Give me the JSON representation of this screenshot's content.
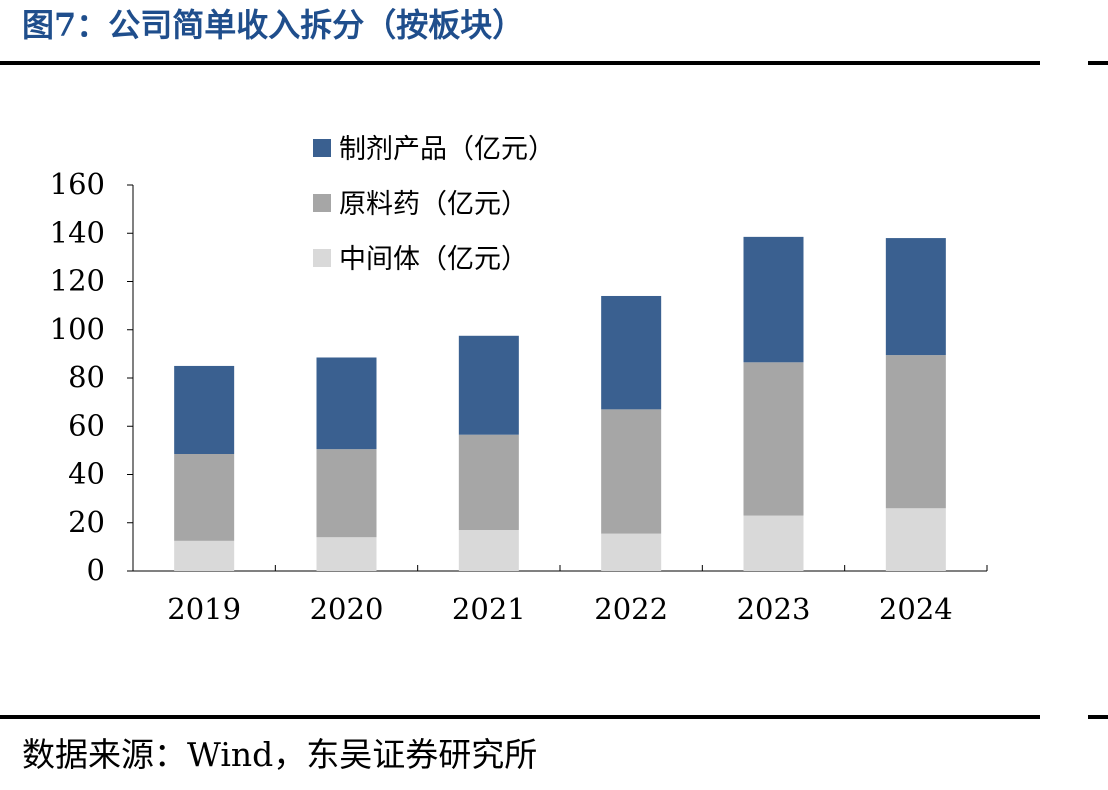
{
  "figure": {
    "title": "图7：公司简单收入拆分（按板块）",
    "source": "数据来源：Wind，东吴证券研究所"
  },
  "chart_data": {
    "type": "bar",
    "stacked": true,
    "categories": [
      "2019",
      "2020",
      "2021",
      "2022",
      "2023",
      "2024"
    ],
    "series": [
      {
        "name": "中间体（亿元）",
        "values": [
          12.5,
          14,
          17,
          15.5,
          23,
          26
        ],
        "color": "#d9d9d9"
      },
      {
        "name": "原料药（亿元）",
        "values": [
          36,
          36.5,
          39.5,
          51.5,
          63.5,
          63.5
        ],
        "color": "#a6a6a6"
      },
      {
        "name": "制剂产品（亿元）",
        "values": [
          36.5,
          38,
          41,
          47,
          52,
          48.5
        ],
        "color": "#3a6090"
      }
    ],
    "ylim": [
      0,
      160
    ],
    "yticks": [
      0,
      20,
      40,
      60,
      80,
      100,
      120,
      140,
      160
    ],
    "xlabel": "",
    "ylabel": "",
    "legend": "top-left",
    "grid": false
  }
}
